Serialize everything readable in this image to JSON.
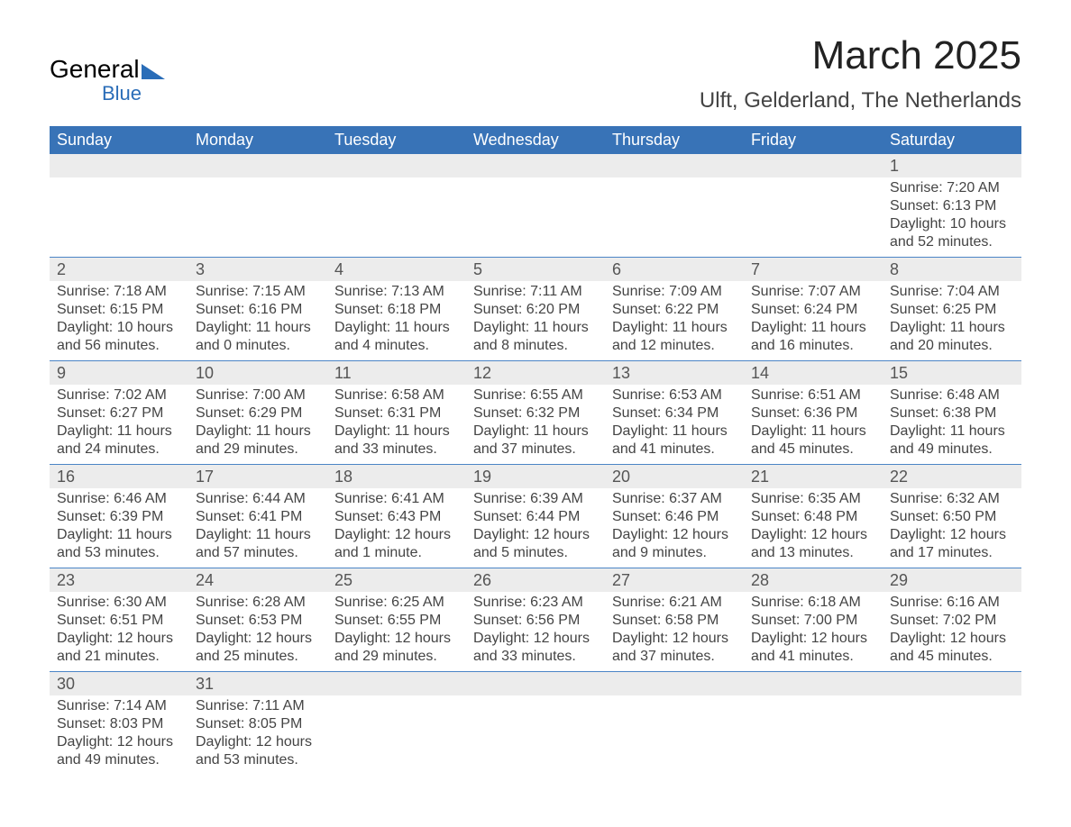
{
  "logo": {
    "text_top": "General",
    "text_bottom": "Blue",
    "accent_color": "#2a6db8"
  },
  "header": {
    "month_title": "March 2025",
    "location": "Ulft, Gelderland, The Netherlands"
  },
  "day_headers": [
    "Sunday",
    "Monday",
    "Tuesday",
    "Wednesday",
    "Thursday",
    "Friday",
    "Saturday"
  ],
  "colors": {
    "header_bg": "#3873b7",
    "header_text": "#ffffff",
    "daynum_bg": "#ececec",
    "row_border": "#4b85c6",
    "body_text": "#444444",
    "page_bg": "#ffffff"
  },
  "weeks": [
    [
      null,
      null,
      null,
      null,
      null,
      null,
      {
        "n": "1",
        "sunrise": "7:20 AM",
        "sunset": "6:13 PM",
        "daylight": "10 hours and 52 minutes."
      }
    ],
    [
      {
        "n": "2",
        "sunrise": "7:18 AM",
        "sunset": "6:15 PM",
        "daylight": "10 hours and 56 minutes."
      },
      {
        "n": "3",
        "sunrise": "7:15 AM",
        "sunset": "6:16 PM",
        "daylight": "11 hours and 0 minutes."
      },
      {
        "n": "4",
        "sunrise": "7:13 AM",
        "sunset": "6:18 PM",
        "daylight": "11 hours and 4 minutes."
      },
      {
        "n": "5",
        "sunrise": "7:11 AM",
        "sunset": "6:20 PM",
        "daylight": "11 hours and 8 minutes."
      },
      {
        "n": "6",
        "sunrise": "7:09 AM",
        "sunset": "6:22 PM",
        "daylight": "11 hours and 12 minutes."
      },
      {
        "n": "7",
        "sunrise": "7:07 AM",
        "sunset": "6:24 PM",
        "daylight": "11 hours and 16 minutes."
      },
      {
        "n": "8",
        "sunrise": "7:04 AM",
        "sunset": "6:25 PM",
        "daylight": "11 hours and 20 minutes."
      }
    ],
    [
      {
        "n": "9",
        "sunrise": "7:02 AM",
        "sunset": "6:27 PM",
        "daylight": "11 hours and 24 minutes."
      },
      {
        "n": "10",
        "sunrise": "7:00 AM",
        "sunset": "6:29 PM",
        "daylight": "11 hours and 29 minutes."
      },
      {
        "n": "11",
        "sunrise": "6:58 AM",
        "sunset": "6:31 PM",
        "daylight": "11 hours and 33 minutes."
      },
      {
        "n": "12",
        "sunrise": "6:55 AM",
        "sunset": "6:32 PM",
        "daylight": "11 hours and 37 minutes."
      },
      {
        "n": "13",
        "sunrise": "6:53 AM",
        "sunset": "6:34 PM",
        "daylight": "11 hours and 41 minutes."
      },
      {
        "n": "14",
        "sunrise": "6:51 AM",
        "sunset": "6:36 PM",
        "daylight": "11 hours and 45 minutes."
      },
      {
        "n": "15",
        "sunrise": "6:48 AM",
        "sunset": "6:38 PM",
        "daylight": "11 hours and 49 minutes."
      }
    ],
    [
      {
        "n": "16",
        "sunrise": "6:46 AM",
        "sunset": "6:39 PM",
        "daylight": "11 hours and 53 minutes."
      },
      {
        "n": "17",
        "sunrise": "6:44 AM",
        "sunset": "6:41 PM",
        "daylight": "11 hours and 57 minutes."
      },
      {
        "n": "18",
        "sunrise": "6:41 AM",
        "sunset": "6:43 PM",
        "daylight": "12 hours and 1 minute."
      },
      {
        "n": "19",
        "sunrise": "6:39 AM",
        "sunset": "6:44 PM",
        "daylight": "12 hours and 5 minutes."
      },
      {
        "n": "20",
        "sunrise": "6:37 AM",
        "sunset": "6:46 PM",
        "daylight": "12 hours and 9 minutes."
      },
      {
        "n": "21",
        "sunrise": "6:35 AM",
        "sunset": "6:48 PM",
        "daylight": "12 hours and 13 minutes."
      },
      {
        "n": "22",
        "sunrise": "6:32 AM",
        "sunset": "6:50 PM",
        "daylight": "12 hours and 17 minutes."
      }
    ],
    [
      {
        "n": "23",
        "sunrise": "6:30 AM",
        "sunset": "6:51 PM",
        "daylight": "12 hours and 21 minutes."
      },
      {
        "n": "24",
        "sunrise": "6:28 AM",
        "sunset": "6:53 PM",
        "daylight": "12 hours and 25 minutes."
      },
      {
        "n": "25",
        "sunrise": "6:25 AM",
        "sunset": "6:55 PM",
        "daylight": "12 hours and 29 minutes."
      },
      {
        "n": "26",
        "sunrise": "6:23 AM",
        "sunset": "6:56 PM",
        "daylight": "12 hours and 33 minutes."
      },
      {
        "n": "27",
        "sunrise": "6:21 AM",
        "sunset": "6:58 PM",
        "daylight": "12 hours and 37 minutes."
      },
      {
        "n": "28",
        "sunrise": "6:18 AM",
        "sunset": "7:00 PM",
        "daylight": "12 hours and 41 minutes."
      },
      {
        "n": "29",
        "sunrise": "6:16 AM",
        "sunset": "7:02 PM",
        "daylight": "12 hours and 45 minutes."
      }
    ],
    [
      {
        "n": "30",
        "sunrise": "7:14 AM",
        "sunset": "8:03 PM",
        "daylight": "12 hours and 49 minutes."
      },
      {
        "n": "31",
        "sunrise": "7:11 AM",
        "sunset": "8:05 PM",
        "daylight": "12 hours and 53 minutes."
      },
      null,
      null,
      null,
      null,
      null
    ]
  ],
  "labels": {
    "sunrise": "Sunrise: ",
    "sunset": "Sunset: ",
    "daylight": "Daylight: "
  }
}
